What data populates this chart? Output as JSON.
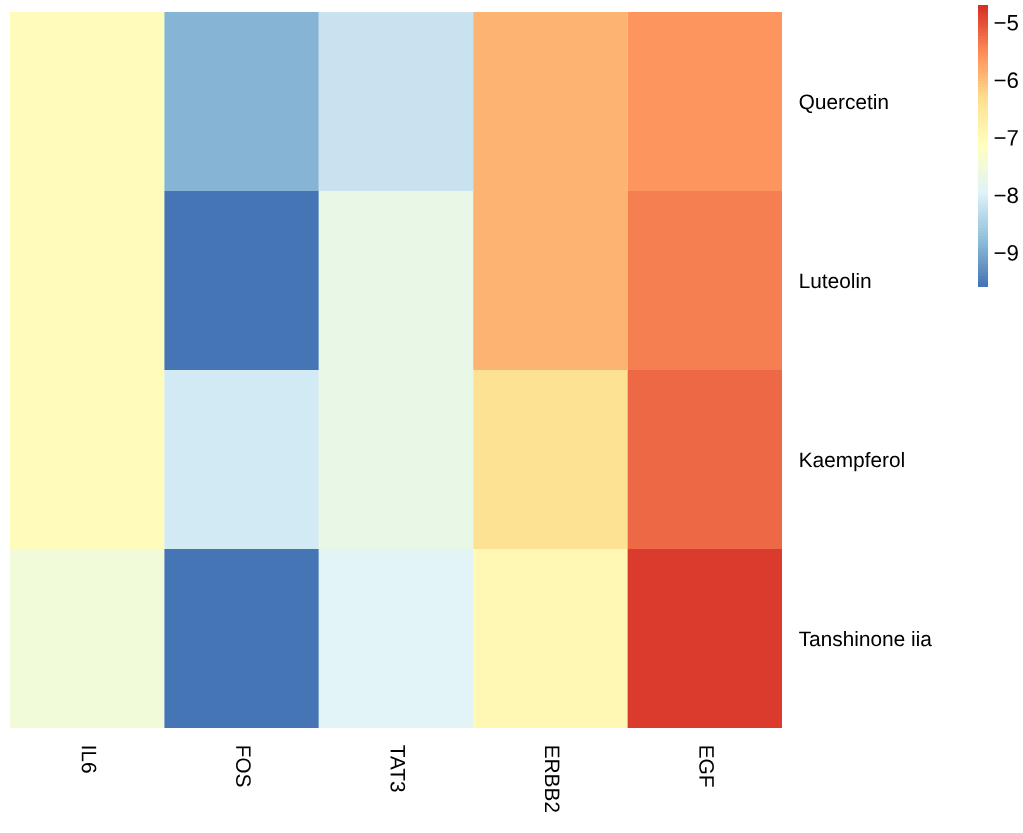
{
  "chart_data": {
    "type": "heatmap",
    "categories": [
      "IL6",
      "FOS",
      "TAT3",
      "ERBB2",
      "EGF"
    ],
    "y_categories": [
      "Quercetin",
      "Luteolin",
      "Kaempferol",
      "Tanshinone iia"
    ],
    "cells": [
      [
        -7.1,
        -8.9,
        -8.2,
        -5.9,
        -5.6
      ],
      [
        -7.1,
        -9.6,
        -7.7,
        -5.9,
        -5.4
      ],
      [
        -7.1,
        -8.1,
        -7.7,
        -6.4,
        -5.2
      ],
      [
        -7.5,
        -9.6,
        -7.9,
        -7.0,
        -4.8
      ]
    ],
    "clim": [
      -9.6,
      -4.7
    ],
    "cticks": [
      {
        "value": -9,
        "label": "−9"
      },
      {
        "value": -8,
        "label": "−8"
      },
      {
        "value": -7,
        "label": "−7"
      },
      {
        "value": -6,
        "label": "−6"
      },
      {
        "value": -5,
        "label": "−5"
      }
    ],
    "grid": false
  }
}
